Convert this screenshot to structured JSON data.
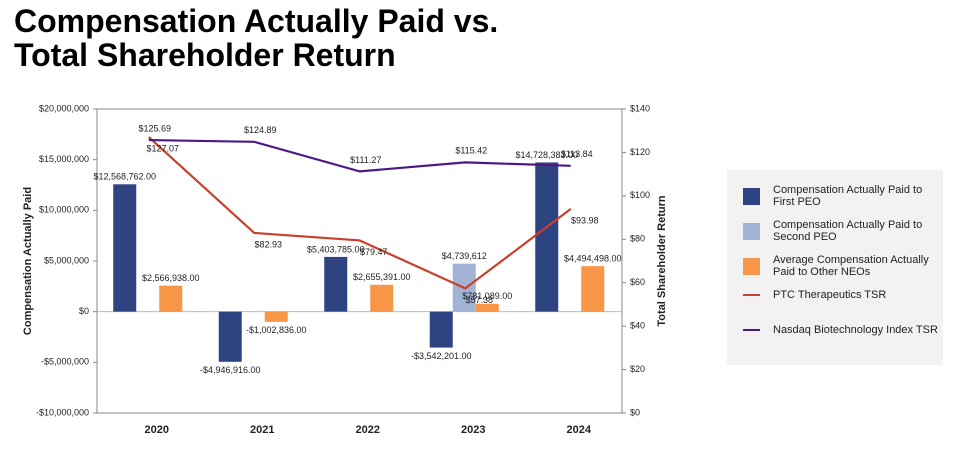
{
  "chart_data": {
    "type": "bar-line",
    "title": "Compensation Actually Paid vs. Total Shareholder Return",
    "ylabel": "Compensation Actually Paid",
    "y2label": "Total Shareholder Return",
    "categories": [
      "2020",
      "2021",
      "2022",
      "2023",
      "2024"
    ],
    "series": [
      {
        "name": "Compensation Actually Paid to First PEO",
        "type": "bar",
        "color": "#2e4482",
        "values": [
          12568762,
          -4946916,
          5403785,
          -3542201,
          14728383
        ],
        "value_labels": [
          "$12,568,762.00",
          "-$4,946,916.00",
          "$5,403,785.00",
          "-$3,542,201.00",
          "$14,728,383.00"
        ]
      },
      {
        "name": "Compensation Actually Paid to Second PEO",
        "type": "bar",
        "color": "#a3b3d6",
        "values": [
          null,
          null,
          null,
          4739612,
          null
        ],
        "value_labels": [
          null,
          null,
          null,
          "$4,739,612",
          null
        ]
      },
      {
        "name": "Average Compensation Actually Paid to Other NEOs",
        "type": "bar",
        "color": "#f79646",
        "values": [
          2566938,
          -1002836,
          2655391,
          781089,
          4494498
        ],
        "value_labels": [
          "$2,566,938.00",
          "-$1,002,836.00",
          "$2,655,391.00",
          "$781,089.00",
          "$4,494,498.00"
        ]
      },
      {
        "name": "PTC Therapeutics TSR",
        "type": "line",
        "axis": "y2",
        "color": "#c8402c",
        "values": [
          127.07,
          82.93,
          79.47,
          57.38,
          93.98
        ],
        "value_labels": [
          "$127.07",
          "$82.93",
          "$79.47",
          "$57.38",
          "$93.98"
        ]
      },
      {
        "name": "Nasdaq Biotechnology Index TSR",
        "type": "line",
        "axis": "y2",
        "color": "#4b1a86",
        "values": [
          125.69,
          124.89,
          111.27,
          115.42,
          113.84
        ],
        "value_labels": [
          "$125.69",
          "$124.89",
          "$111.27",
          "$115.42",
          "$113.84"
        ]
      }
    ],
    "ylim": [
      -10000000,
      20000000
    ],
    "yticks": [
      {
        "value": -10000000,
        "label": "-$10,000,000"
      },
      {
        "value": -5000000,
        "label": "-$5,000,000"
      },
      {
        "value": 0,
        "label": "$0"
      },
      {
        "value": 5000000,
        "label": "$5,000,000"
      },
      {
        "value": 10000000,
        "label": "$10,000,000"
      },
      {
        "value": 15000000,
        "label": "$15,000,000"
      },
      {
        "value": 20000000,
        "label": "$20,000,000"
      }
    ],
    "y2lim": [
      0,
      140
    ],
    "y2ticks": [
      {
        "value": 0,
        "label": "$0"
      },
      {
        "value": 20,
        "label": "$20"
      },
      {
        "value": 40,
        "label": "$40"
      },
      {
        "value": 60,
        "label": "$60"
      },
      {
        "value": 80,
        "label": "$80"
      },
      {
        "value": 100,
        "label": "$100"
      },
      {
        "value": 120,
        "label": "$120"
      },
      {
        "value": 140,
        "label": "$140"
      }
    ],
    "legend": "right"
  }
}
